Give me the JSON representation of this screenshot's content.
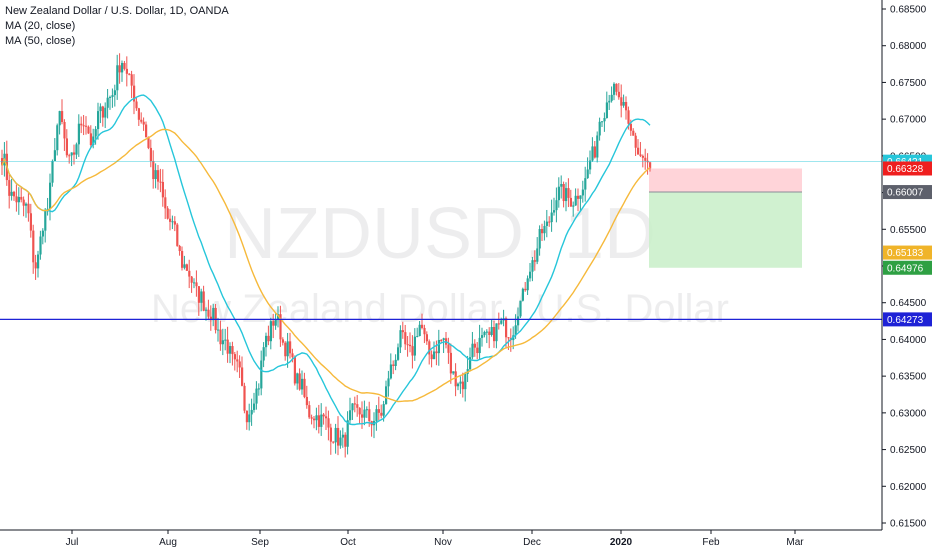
{
  "header": {
    "title": "New Zealand Dollar / U.S. Dollar, 1D, OANDA",
    "indicators": [
      "MA (20, close)",
      "MA (50, close)"
    ]
  },
  "watermark": {
    "symbol": "NZDUSD, 1D",
    "description": "New Zealand Dollar / U.S. Dollar"
  },
  "colors": {
    "up": "#26a69a",
    "down": "#ef5350",
    "ma20": "#26c6da",
    "ma50": "#f6b93b",
    "support_line": "#1e22d6",
    "stop_zone": "#ffcdd2",
    "target_zone": "#c8efc8"
  },
  "chart_data": {
    "type": "candlestick",
    "ylim": [
      0.615,
      0.6855
    ],
    "y_ticks": [
      "0.61500",
      "0.62000",
      "0.62500",
      "0.63000",
      "0.63500",
      "0.64000",
      "0.64500",
      "0.65000",
      "0.65500",
      "0.66000",
      "0.66500",
      "0.67000",
      "0.67500",
      "0.68000",
      "0.68500"
    ],
    "x_ticks": [
      "Jul",
      "Aug",
      "Sep",
      "Oct",
      "Nov",
      "Dec",
      "2020",
      "Feb",
      "Mar"
    ],
    "series": [
      {
        "name": "MA (20, close)",
        "type": "line"
      },
      {
        "name": "MA (50, close)",
        "type": "line"
      }
    ],
    "price_labels": [
      {
        "value": "0.66421",
        "color": "#26c6da"
      },
      {
        "value": "0.66328",
        "color": "#ef1e1e"
      },
      {
        "value": "0.66007",
        "color": "#5d606b"
      },
      {
        "value": "0.65183",
        "color": "#f0b429"
      },
      {
        "value": "0.64976",
        "color": "#2ea043"
      },
      {
        "value": "0.64273",
        "color": "#1e22d6"
      }
    ],
    "horizontal_line": 0.64273,
    "position": {
      "entry": 0.66007,
      "stop": 0.66328,
      "target": 0.64976
    }
  }
}
